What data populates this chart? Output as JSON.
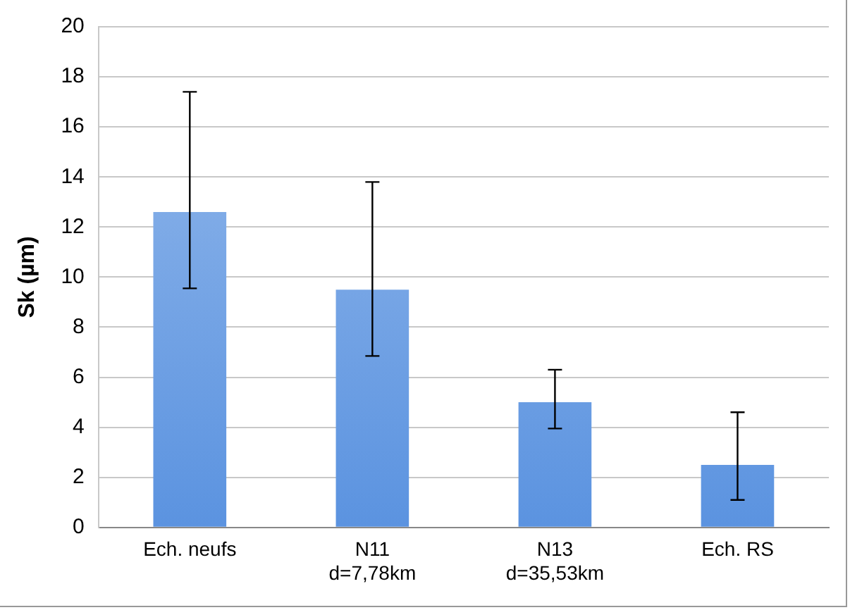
{
  "chart_data": {
    "type": "bar",
    "ylabel": "Sk (µm)",
    "categories": [
      "Ech. neufs",
      "N11\nd=7,78km",
      "N13\nd=35,53km",
      "Ech. RS"
    ],
    "values": [
      12.6,
      9.5,
      5.0,
      2.5
    ],
    "errors": [
      [
        9.55,
        17.4
      ],
      [
        6.85,
        13.8
      ],
      [
        3.95,
        6.3
      ],
      [
        1.1,
        4.6
      ]
    ],
    "color": "#5b93e0",
    "ylim": [
      0,
      20
    ],
    "yticks": [
      0,
      2,
      4,
      6,
      8,
      10,
      12,
      14,
      16,
      18,
      20
    ],
    "grid": "y",
    "legend": false
  }
}
